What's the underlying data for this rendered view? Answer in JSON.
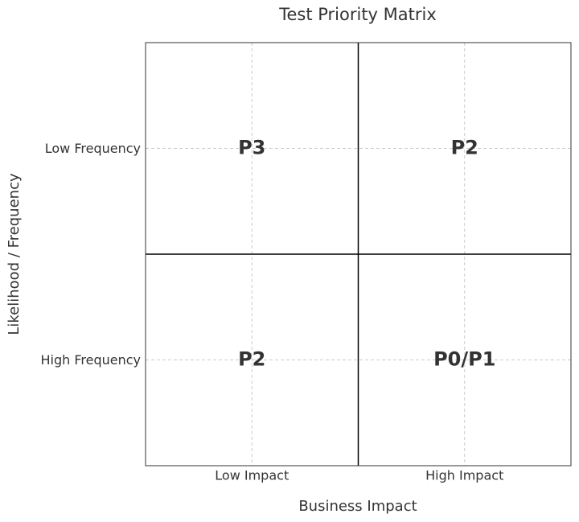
{
  "chart_data": {
    "type": "matrix",
    "title": "Test Priority Matrix",
    "x_label": "Business Impact",
    "y_label": "Likelihood / Frequency",
    "x_categories": [
      "Low Impact",
      "High Impact"
    ],
    "y_categories": [
      "Low Frequency",
      "High Frequency"
    ],
    "cells": [
      [
        "P3",
        "P2"
      ],
      [
        "P2",
        "P0/P1"
      ]
    ],
    "grid": true
  }
}
